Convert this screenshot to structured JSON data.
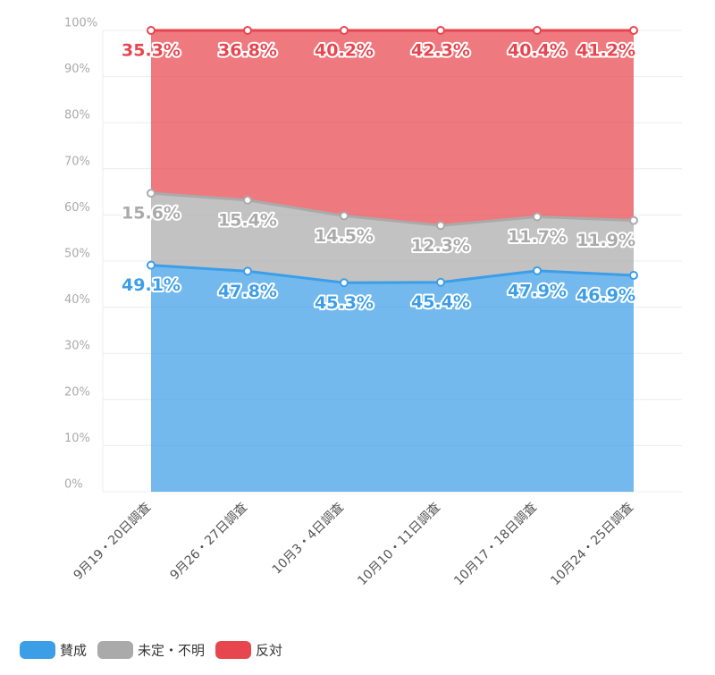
{
  "chart_data": {
    "type": "stacked_area",
    "categories": [
      "9月19・20日調査",
      "9月26・27日調査",
      "10月3・4日調査",
      "10月10・11日調査",
      "10月17・18日調査",
      "10月24・25日調査"
    ],
    "series": [
      {
        "name": "賛成",
        "color": "#3d9ee8",
        "values": [
          49.1,
          47.8,
          45.3,
          45.4,
          47.9,
          46.9
        ],
        "value_labels": [
          "49.1%",
          "47.8%",
          "45.3%",
          "45.4%",
          "47.9%",
          "46.9%"
        ]
      },
      {
        "name": "未定・不明",
        "color": "#aaaaaa",
        "values": [
          15.6,
          15.4,
          14.5,
          12.3,
          11.7,
          11.9
        ],
        "value_labels": [
          "15.6%",
          "15.4%",
          "14.5%",
          "12.3%",
          "11.7%",
          "11.9%"
        ]
      },
      {
        "name": "反対",
        "color": "#e8464e",
        "values": [
          35.3,
          36.8,
          40.2,
          42.3,
          40.4,
          41.2
        ],
        "value_labels": [
          "35.3%",
          "36.8%",
          "40.2%",
          "42.3%",
          "40.4%",
          "41.2%"
        ]
      }
    ],
    "ylim": [
      0,
      100
    ],
    "yticks": [
      {
        "value": 0,
        "label": "0%"
      },
      {
        "value": 10,
        "label": "10%"
      },
      {
        "value": 20,
        "label": "20%"
      },
      {
        "value": 30,
        "label": "30%"
      },
      {
        "value": 40,
        "label": "40%"
      },
      {
        "value": 50,
        "label": "50%"
      },
      {
        "value": 60,
        "label": "60%"
      },
      {
        "value": 70,
        "label": "70%"
      },
      {
        "value": 80,
        "label": "80%"
      },
      {
        "value": 90,
        "label": "90%"
      },
      {
        "value": 100,
        "label": "100%"
      }
    ],
    "grid": true
  }
}
